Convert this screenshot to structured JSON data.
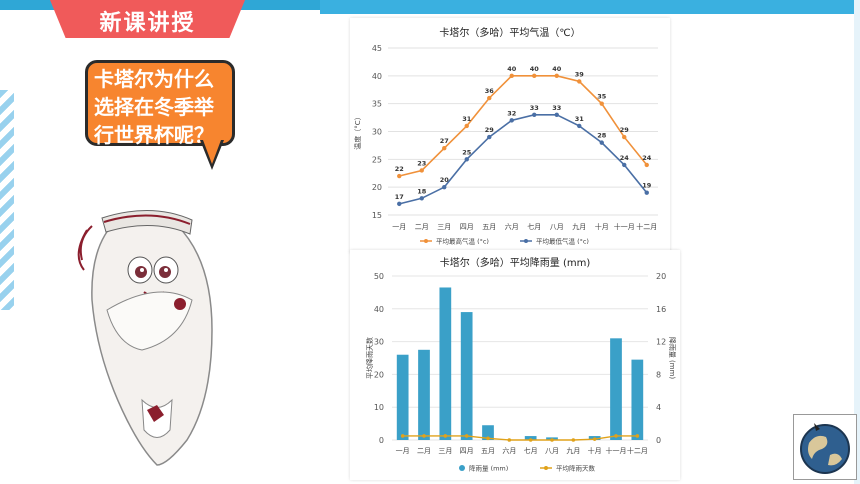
{
  "header": {
    "title": "新课讲授"
  },
  "bubble": {
    "text": "卡塔尔为什么选择在冬季举行世界杯呢？"
  },
  "chart_data": [
    {
      "type": "line",
      "title": "卡塔尔（多哈）平均气温（℃）",
      "ylabel": "温度（°C）",
      "categories": [
        "一月",
        "二月",
        "三月",
        "四月",
        "五月",
        "六月",
        "七月",
        "八月",
        "九月",
        "十月",
        "十一月",
        "十二月"
      ],
      "ylim": [
        15,
        45
      ],
      "yticks": [
        15,
        20,
        25,
        30,
        35,
        40,
        45
      ],
      "series": [
        {
          "name": "平均最高气温 (°c)",
          "color": "#f0913a",
          "values": [
            22,
            23,
            27,
            31,
            36,
            40,
            40,
            40,
            39,
            35,
            29,
            24
          ]
        },
        {
          "name": "平均最低气温 (°c)",
          "color": "#4a6fa5",
          "values": [
            17,
            18,
            20,
            25,
            29,
            32,
            33,
            33,
            31,
            28,
            24,
            19
          ]
        }
      ],
      "grid": true,
      "legend": "bottom"
    },
    {
      "type": "bar",
      "title": "卡塔尔（多哈）平均降雨量 (mm)",
      "ylabel_left": "平均降雨天数",
      "ylabel_right": "降雨量 (mm)",
      "categories": [
        "一月",
        "二月",
        "三月",
        "四月",
        "五月",
        "六月",
        "七月",
        "八月",
        "九月",
        "十月",
        "十一月",
        "十二月"
      ],
      "ylim_left": [
        0,
        50
      ],
      "yticks_left": [
        0,
        10,
        20,
        30,
        40,
        50
      ],
      "ylim_right": [
        0,
        20
      ],
      "yticks_right": [
        0,
        4,
        8,
        12,
        16,
        20
      ],
      "series": [
        {
          "name": "降雨量 (mm)",
          "color": "#3aa0c8",
          "values": [
            26,
            27.5,
            46.5,
            39,
            4.5,
            0,
            1.2,
            0.8,
            0,
            1.2,
            31,
            24.5
          ]
        },
        {
          "name": "平均降雨天数",
          "color": "#e0a21a",
          "values": [
            0.5,
            0.5,
            0.5,
            0.5,
            0.2,
            0,
            0,
            0,
            0,
            0.1,
            0.5,
            0.5
          ]
        }
      ],
      "grid": true,
      "legend": "bottom"
    }
  ]
}
